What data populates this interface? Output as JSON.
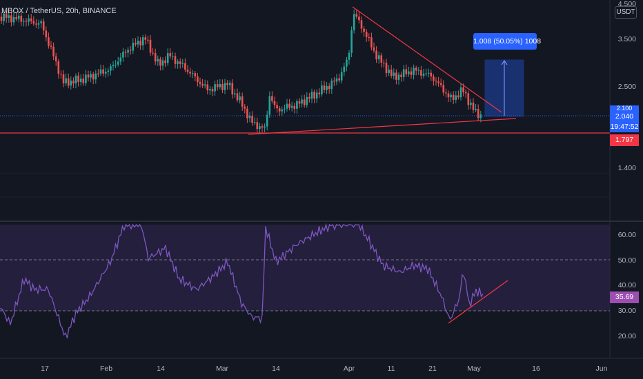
{
  "ticker": {
    "symbol_line": "MBOX / TetherUS, 20h, BINANCE"
  },
  "price_axis": {
    "currency": "USDT",
    "labels": [
      "4.500",
      "3.500",
      "2.500",
      "1.400"
    ],
    "badges": {
      "last_price": "2.040",
      "countdown": "19:47:52",
      "support": "1.797",
      "partial": "2.100"
    }
  },
  "rsi_axis": {
    "labels": [
      "60.00",
      "50.00",
      "40.00",
      "30.00",
      "20.00"
    ],
    "current": "35.69"
  },
  "time_axis": {
    "labels": [
      "17",
      "Feb",
      "14",
      "Mar",
      "14",
      "Apr",
      "11",
      "21",
      "May",
      "16",
      "Jun"
    ]
  },
  "measure_label": "1.008 (50.05%) 1008",
  "colors": {
    "background": "#131722",
    "up": "#26a69a",
    "down": "#ef5350",
    "trendline": "#f23645",
    "rsi_line": "#7e57c2",
    "rsi_band": "#2a2346",
    "measure": "#2962ff"
  },
  "icons": {
    "measure_arrow": "up-arrow-icon"
  }
}
